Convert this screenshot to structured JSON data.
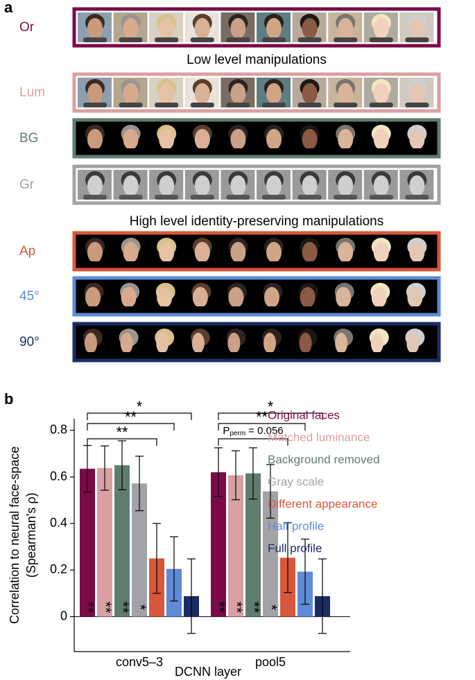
{
  "panel_a": {
    "label": "a",
    "headings": [
      "Low level manipulations",
      "High level identity-preserving manipulations"
    ],
    "rows": [
      {
        "label": "Or",
        "color": "#7b0b47"
      },
      {
        "label": "Lum",
        "color": "#d9a0a2"
      },
      {
        "label": "BG",
        "color": "#5f7d6f"
      },
      {
        "label": "Gr",
        "color": "#a3a2a6"
      },
      {
        "label": "Ap",
        "color": "#d8573b"
      },
      {
        "label": "45°",
        "color": "#5f8ad6"
      },
      {
        "label": "90°",
        "color": "#1b2c65"
      }
    ]
  },
  "chart_data": {
    "type": "bar",
    "panel_label": "b",
    "categories": [
      "conv5–3",
      "pool5"
    ],
    "x_label": "DCNN layer",
    "y_label": [
      "Correlation to neural face-space",
      "(Spearman's ρ)"
    ],
    "ylim": [
      -0.15,
      0.85
    ],
    "yticks": [
      0,
      0.2,
      0.4,
      0.6,
      0.8
    ],
    "series": [
      {
        "name": "Original faces",
        "color": "#7b0b47",
        "values": [
          0.635,
          0.62
        ],
        "errors": [
          0.1,
          0.105
        ],
        "stars": [
          "**",
          "**"
        ]
      },
      {
        "name": "Matched luminance",
        "color": "#d9a0a2",
        "values": [
          0.638,
          0.607
        ],
        "errors": [
          0.095,
          0.105
        ],
        "stars": [
          "**",
          "**"
        ]
      },
      {
        "name": "Background removed",
        "color": "#5f7d6f",
        "values": [
          0.65,
          0.615
        ],
        "errors": [
          0.105,
          0.11
        ],
        "stars": [
          "**",
          "**"
        ]
      },
      {
        "name": "Gray scale",
        "color": "#a3a2a6",
        "values": [
          0.572,
          0.538
        ],
        "errors": [
          0.117,
          0.115
        ],
        "stars": [
          "*",
          "*"
        ]
      },
      {
        "name": "Different appearance",
        "color": "#d8573b",
        "values": [
          0.25,
          0.253
        ],
        "errors": [
          0.15,
          0.15
        ]
      },
      {
        "name": "Half profile",
        "color": "#5f8ad6",
        "values": [
          0.205,
          0.193
        ],
        "errors": [
          0.138,
          0.14
        ]
      },
      {
        "name": "Full profile",
        "color": "#1b2c65",
        "values": [
          0.088,
          0.088
        ],
        "errors": [
          0.16,
          0.16
        ]
      }
    ],
    "comparisons": [
      [
        "**",
        "**",
        "*"
      ],
      [
        {
          "symbol": "P",
          "subscript": "perm",
          "text": "= 0.056"
        },
        "**",
        "*"
      ]
    ]
  }
}
